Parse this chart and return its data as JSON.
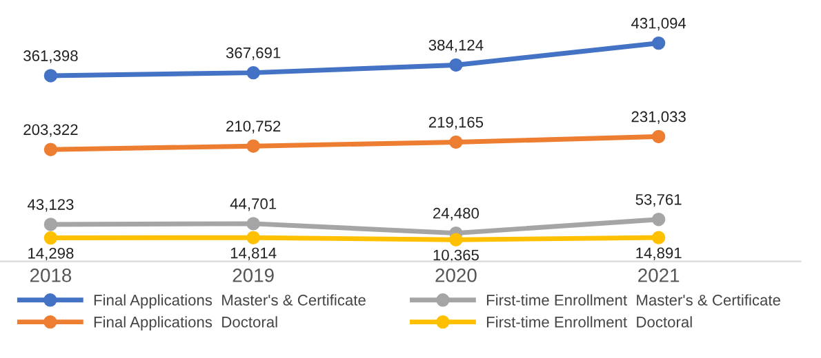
{
  "chart_data": {
    "type": "line",
    "categories": [
      "2018",
      "2019",
      "2020",
      "2021"
    ],
    "series": [
      {
        "name": "Final Applications  Master's & Certificate",
        "color": "#4472c4",
        "values": [
          361398,
          367691,
          384124,
          431094
        ],
        "value_labels": [
          "361,398",
          "367,691",
          "384,124",
          "431,094"
        ]
      },
      {
        "name": "Final Applications  Doctoral",
        "color": "#ed7d31",
        "values": [
          203322,
          210752,
          219165,
          231033
        ],
        "value_labels": [
          "203,322",
          "210,752",
          "219,165",
          "231,033"
        ]
      },
      {
        "name": "First-time Enrollment  Master's & Certificate",
        "color": "#a5a5a5",
        "values": [
          43123,
          44701,
          24480,
          53761
        ],
        "value_labels": [
          "43,123",
          "44,701",
          "24,480",
          "53,761"
        ]
      },
      {
        "name": "First-time Enrollment  Doctoral",
        "color": "#ffc000",
        "values": [
          14298,
          14814,
          10365,
          14891
        ],
        "value_labels": [
          "14,298",
          "14,814",
          "10,365",
          "14,891"
        ]
      }
    ],
    "marker": "circle",
    "line_style": "solid",
    "grid": false,
    "legend": "bottom",
    "tick_labels": "x"
  }
}
